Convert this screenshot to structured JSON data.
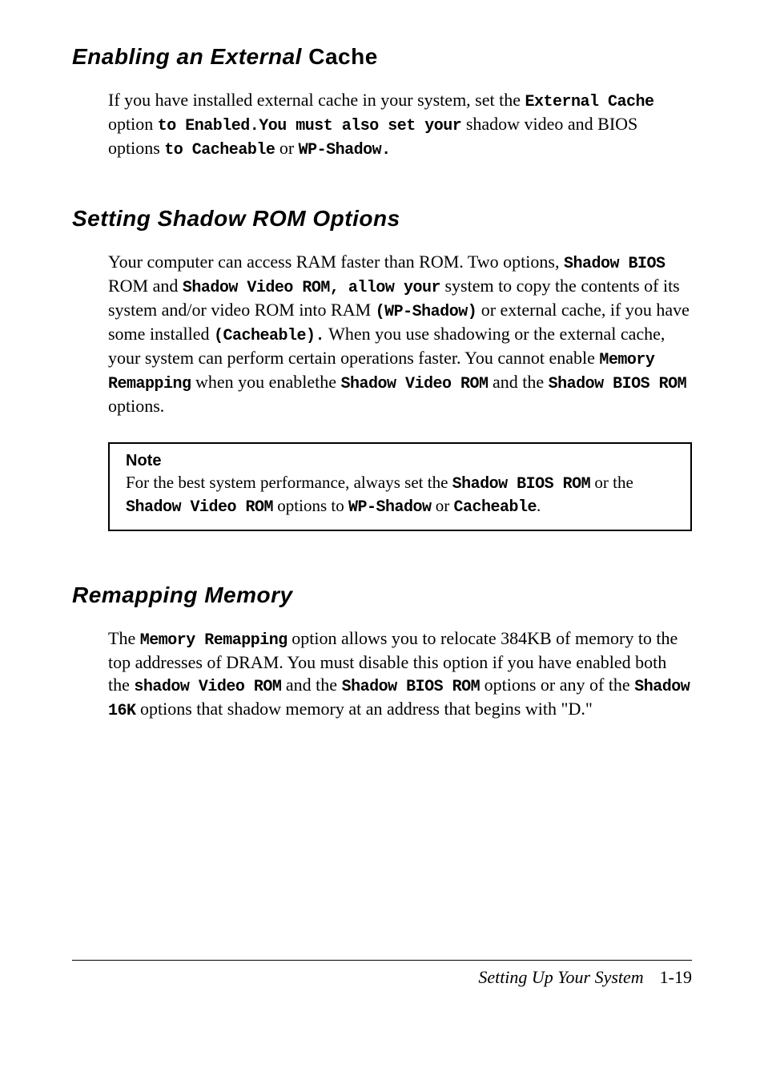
{
  "sections": {
    "enable_cache": {
      "heading_italic": "Enabling an External",
      "heading_regular": " Cache",
      "p1_a": "If you have installed external cache in your system, set the ",
      "p1_mono1": "External Cache",
      "p1_b": " option ",
      "p1_mono2": "to Enabled.You must also set your",
      "p1_c": " shadow video and BIOS options ",
      "p1_mono3": "to Cacheable",
      "p1_d": " or ",
      "p1_mono4": "WP-Shadow."
    },
    "shadow_rom": {
      "heading": "Setting Shadow ROM Options",
      "p1_a": "Your computer can access RAM faster than ROM. Two options, ",
      "p1_mono1": "Shadow BIOS",
      "p1_b": " ROM and ",
      "p1_mono2": "Shadow Video ROM, allow your",
      "p1_c": " system to copy the contents of its system and/or video ROM into RAM ",
      "p1_mono3": "(WP-Shadow)",
      "p1_d": " or external cache, if you have some installed ",
      "p1_mono4": "(Cacheable).",
      "p1_e": " When you use shadowing or the external cache, your system can perform certain operations faster. You cannot enable ",
      "p1_mono5": "Memory Remapping",
      "p1_f": " when you enablethe ",
      "p1_mono6": "Shadow Video ROM",
      "p1_g": " and the ",
      "p1_mono7": "Shadow BIOS ROM",
      "p1_h": " options.",
      "note_title": "Note",
      "note_a": "For the best system performance, always set the ",
      "note_mono1": "Shadow BIOS ROM",
      "note_b": " or the ",
      "note_mono2": "Shadow Video ROM",
      "note_c": " options to ",
      "note_mono3": "WP-Shadow",
      "note_d": " or ",
      "note_mono4": "Cacheable",
      "note_e": "."
    },
    "remap": {
      "heading": "Remapping Memory",
      "p1_a": "The ",
      "p1_mono1": "Memory Remapping",
      "p1_b": " option allows you to relocate 384KB of memory to the top addresses of DRAM. You must disable this option if you have enabled both the ",
      "p1_mono2": "shadow Video ROM",
      "p1_c": " and the ",
      "p1_mono3": "Shadow BIOS ROM",
      "p1_d": " options or any of the ",
      "p1_mono4": "Shadow 16K",
      "p1_e": " options that shadow memory at an address that begins with \"D.\""
    }
  },
  "footer": {
    "title": "Setting Up Your System",
    "page": "1-19"
  },
  "style": {
    "background": "#ffffff",
    "text_color": "#000000",
    "heading_fontsize": 28,
    "body_fontsize": 22,
    "mono_fontsize": 20,
    "note_border": "#000000"
  }
}
